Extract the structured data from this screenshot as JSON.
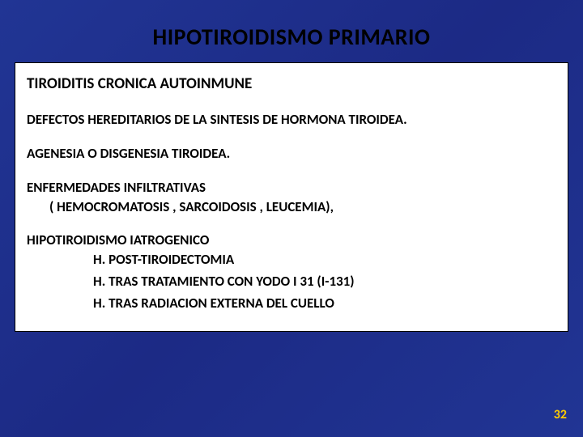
{
  "slide": {
    "background_color": "#1f2f8f",
    "title": {
      "text": "HIPOTIROIDISMO PRIMARIO",
      "color": "#000000",
      "font_size_pt": 28,
      "font_weight": "bold"
    },
    "content_box": {
      "background_color": "#ffffff",
      "border_color": "#000000",
      "text_color": "#000000",
      "font_weight": "bold",
      "sections": [
        {
          "heading": "TIROIDITIS  CRONICA AUTOINMUNE",
          "heading_font_size_pt": 19
        },
        {
          "heading": "DEFECTOS HEREDITARIOS DE LA SINTESIS DE HORMONA  TIROIDEA.",
          "heading_font_size_pt": 17
        },
        {
          "heading": "AGENESIA O DISGENESIA TIROIDEA.",
          "heading_font_size_pt": 17
        },
        {
          "heading": "ENFERMEDADES INFILTRATIVAS",
          "heading_font_size_pt": 17,
          "sub": "( HEMOCROMATOSIS , SARCOIDOSIS , LEUCEMIA),"
        },
        {
          "heading": "HIPOTIROIDISMO IATROGENICO",
          "heading_font_size_pt": 17,
          "items": [
            "H.  POST-TIROIDECTOMIA",
            "H.  TRAS TRATAMIENTO CON YODO I 31 (I-131)",
            "H.  TRAS RADIACION EXTERNA DEL CUELLO"
          ]
        }
      ]
    },
    "page_number": {
      "text": "32",
      "color": "#ffcc00",
      "font_size_pt": 16,
      "font_weight": "bold"
    }
  }
}
